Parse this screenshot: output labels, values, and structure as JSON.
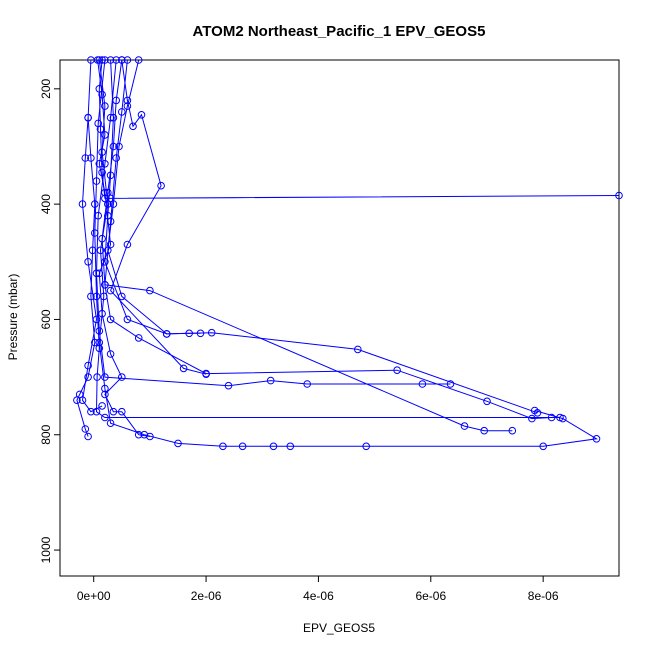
{
  "chart_data": {
    "type": "line",
    "title": "ATOM2 Northeast_Pacific_1 EPV_GEOS5",
    "xlabel": "EPV_GEOS5",
    "ylabel": "Pressure (mbar)",
    "xlim": [
      -6e-07,
      9.35e-06
    ],
    "ylim": [
      1045,
      150
    ],
    "y_reversed": true,
    "x_ticks": [
      0,
      2e-06,
      4e-06,
      6e-06,
      8e-06
    ],
    "x_tick_labels": [
      "0e+00",
      "2e-06",
      "4e-06",
      "6e-06",
      "8e-06"
    ],
    "y_ticks": [
      200,
      400,
      600,
      800,
      1000
    ],
    "y_tick_labels": [
      "200",
      "400",
      "600",
      "800",
      "1000"
    ],
    "grid": false,
    "series": [
      {
        "points": [
          [
            1e-07,
            150
          ],
          [
            2e-07,
            230
          ],
          [
            1.5e-07,
            310
          ],
          [
            2.5e-07,
            400
          ],
          [
            1.2e-07,
            480
          ],
          [
            1.8e-07,
            560
          ],
          [
            1e-07,
            640
          ],
          [
            2e-07,
            720
          ],
          [
            3e-07,
            780
          ],
          [
            9e-07,
            800
          ],
          [
            1.5e-06,
            815
          ],
          [
            2.3e-06,
            820
          ],
          [
            2.65e-06,
            820
          ],
          [
            3.2e-06,
            820
          ],
          [
            3.5e-06,
            820
          ],
          [
            4.85e-06,
            820
          ],
          [
            8e-06,
            820
          ],
          [
            8.95e-06,
            807
          ],
          [
            8.35e-06,
            772
          ],
          [
            7.85e-06,
            758
          ]
        ]
      },
      {
        "points": [
          [
            4e-07,
            150
          ],
          [
            3e-07,
            250
          ],
          [
            2e-07,
            330
          ],
          [
            8e-08,
            420
          ],
          [
            5e-08,
            520
          ],
          [
            1e-07,
            620
          ],
          [
            2e-07,
            700
          ],
          [
            2.4e-06,
            715
          ],
          [
            3.15e-06,
            706
          ],
          [
            3.8e-06,
            712
          ],
          [
            5.85e-06,
            712
          ],
          [
            6.35e-06,
            712
          ]
        ]
      },
      {
        "points": [
          [
            6e-07,
            150
          ],
          [
            5e-07,
            240
          ],
          [
            4e-07,
            320
          ],
          [
            3e-07,
            430
          ],
          [
            2e-07,
            540
          ],
          [
            3e-07,
            600
          ],
          [
            8e-07,
            632
          ],
          [
            2e-06,
            694
          ],
          [
            5.4e-06,
            688
          ],
          [
            7e-06,
            742
          ],
          [
            7.8e-06,
            772
          ],
          [
            8.15e-06,
            770
          ]
        ]
      },
      {
        "points": [
          [
            2e-07,
            150
          ],
          [
            8e-08,
            260
          ],
          [
            5e-08,
            360
          ],
          [
            2e-08,
            450
          ],
          [
            5e-08,
            560
          ],
          [
            1e-07,
            650
          ],
          [
            6e-08,
            700
          ],
          [
            5e-08,
            760
          ],
          [
            2e-07,
            770
          ],
          [
            8.3e-06,
            770
          ]
        ]
      },
      {
        "points": [
          [
            8e-07,
            150
          ],
          [
            6e-07,
            230
          ],
          [
            4.5e-07,
            300
          ],
          [
            3.5e-07,
            400
          ],
          [
            2.5e-07,
            480
          ],
          [
            5e-07,
            560
          ],
          [
            1.3e-06,
            625
          ],
          [
            2.1e-06,
            623
          ],
          [
            4.7e-06,
            652
          ],
          [
            7.9e-06,
            762
          ]
        ]
      },
      {
        "points": [
          [
            -5e-08,
            150
          ],
          [
            -1e-07,
            250
          ],
          [
            -1.5e-07,
            320
          ],
          [
            -2e-07,
            400
          ],
          [
            -1e-07,
            500
          ],
          [
            5e-08,
            600
          ],
          [
            -1e-07,
            680
          ],
          [
            -2e-07,
            740
          ],
          [
            -5e-08,
            760
          ],
          [
            1.5e-07,
            750
          ]
        ]
      },
      {
        "points": [
          [
            3e-07,
            150
          ],
          [
            3.5e-07,
            250
          ],
          [
            3e-07,
            350
          ],
          [
            2.5e-07,
            420
          ],
          [
            2e-07,
            500
          ],
          [
            6e-07,
            600
          ],
          [
            1.3e-06,
            625
          ],
          [
            1.7e-06,
            624
          ],
          [
            1.9e-06,
            624
          ]
        ]
      },
      {
        "points": [
          [
            5e-07,
            150
          ],
          [
            6e-07,
            220
          ],
          [
            7e-07,
            265
          ],
          [
            8.5e-07,
            245
          ],
          [
            1.2e-06,
            368
          ],
          [
            6e-07,
            470
          ],
          [
            3e-07,
            550
          ],
          [
            1.6e-06,
            685
          ],
          [
            2e-06,
            695
          ]
        ]
      },
      {
        "points": [
          [
            1.5e-07,
            150
          ],
          [
            1e-07,
            200
          ],
          [
            1.2e-07,
            270
          ],
          [
            1.5e-07,
            345
          ],
          [
            2e-07,
            390
          ],
          [
            9.5e-06,
            385
          ],
          [
            3e-07,
            390
          ]
        ]
      },
      {
        "points": [
          [
            5e-07,
            150
          ],
          [
            4e-07,
            220
          ],
          [
            3.5e-07,
            300
          ],
          [
            2.5e-07,
            380
          ],
          [
            1.5e-07,
            460
          ],
          [
            2e-07,
            540
          ],
          [
            1e-06,
            550
          ],
          [
            6.6e-06,
            785
          ],
          [
            6.95e-06,
            793
          ],
          [
            7.45e-06,
            793
          ]
        ]
      },
      {
        "points": [
          [
            -1e-07,
            250
          ],
          [
            -5e-08,
            320
          ],
          [
            2e-08,
            400
          ],
          [
            -2e-08,
            480
          ],
          [
            -5e-08,
            560
          ],
          [
            2e-08,
            640
          ],
          [
            -1e-07,
            700
          ],
          [
            -2.5e-07,
            730
          ],
          [
            -3e-07,
            740
          ],
          [
            -1.5e-07,
            790
          ],
          [
            -1e-07,
            803
          ]
        ]
      },
      {
        "points": [
          [
            7e-08,
            150
          ],
          [
            1.5e-07,
            210
          ],
          [
            2e-07,
            280
          ],
          [
            1e-07,
            330
          ],
          [
            2e-07,
            380
          ],
          [
            3e-07,
            470
          ],
          [
            1e-07,
            520
          ],
          [
            1.5e-07,
            590
          ],
          [
            3e-07,
            660
          ],
          [
            5e-07,
            700
          ],
          [
            2e-07,
            730
          ],
          [
            3.5e-07,
            760
          ],
          [
            5e-07,
            760
          ],
          [
            8e-07,
            800
          ],
          [
            1e-06,
            803
          ]
        ]
      }
    ]
  }
}
